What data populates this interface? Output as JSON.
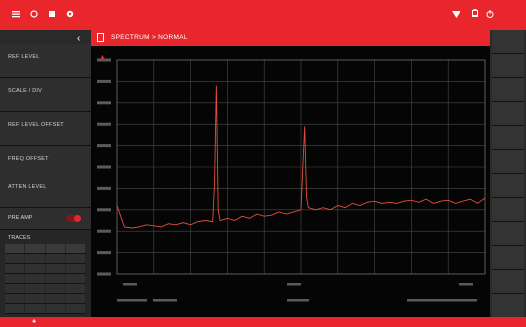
{
  "colors": {
    "accent": "#e8262b",
    "panel": "#2a2a2a",
    "trace": "#e0503c",
    "grid": "#4a4a4a",
    "axis_text": "#a0a0a0"
  },
  "topbar": {
    "left_icons": [
      "menu-icon",
      "record-icon",
      "stop-icon",
      "settings-icon"
    ],
    "right_icons": [
      "wifi-icon",
      "battery-icon",
      "power-icon"
    ],
    "clock": {
      "time": "",
      "date": ""
    }
  },
  "titlebar": {
    "breadcrumb": "SPECTRUM > NORMAL"
  },
  "sidebar": {
    "items": [
      {
        "label": "REF LEVEL",
        "value": ""
      },
      {
        "label": "SCALE / DIV",
        "value": ""
      },
      {
        "label": "REF LEVEL OFFSET",
        "value": ""
      },
      {
        "label": "FREQ OFFSET",
        "value": ""
      },
      {
        "label": "ATTEN LEVEL",
        "value": ""
      }
    ],
    "preamp_label": "PRE AMP",
    "preamp_on": true,
    "traces_title": "TRACES",
    "trace_table": {
      "headers": [
        "",
        "",
        "",
        ""
      ],
      "rows": [
        [
          "",
          "",
          "",
          ""
        ],
        [
          "",
          "",
          "",
          ""
        ],
        [
          "",
          "",
          "",
          ""
        ],
        [
          "",
          "",
          "",
          ""
        ],
        [
          "",
          "",
          "",
          ""
        ],
        [
          "",
          "",
          "",
          ""
        ]
      ]
    }
  },
  "rightbar": {
    "buttons": [
      "",
      "",
      "",
      "",
      "",
      "",
      "",
      "",
      "",
      "",
      "",
      ""
    ]
  },
  "plot": {
    "marker_label": "",
    "status": {
      "left1": "",
      "left2": "",
      "mid1": "",
      "mid2": "",
      "right1": "",
      "right2": ""
    },
    "x_start_label": "",
    "x_center_label": "",
    "x_stop_label": ""
  },
  "chart_data": {
    "type": "line",
    "title": "",
    "xlabel": "",
    "ylabel": "",
    "grid": true,
    "ylim": [
      0,
      10
    ],
    "xlim": [
      0,
      100
    ],
    "series": [
      {
        "x": [
          0,
          2,
          4,
          6,
          8,
          10,
          12,
          14,
          16,
          18,
          20,
          22,
          24,
          26,
          26.5,
          27,
          27.5,
          28,
          30,
          32,
          34,
          36,
          38,
          40,
          42,
          44,
          46,
          48,
          50,
          50.5,
          51,
          51.5,
          52,
          54,
          56,
          58,
          60,
          62,
          64,
          66,
          68,
          70,
          72,
          74,
          76,
          78,
          80,
          82,
          84,
          86,
          88,
          90,
          92,
          94,
          96,
          98,
          100
        ],
        "y": [
          3.2,
          2.2,
          2.15,
          2.2,
          2.3,
          2.25,
          2.2,
          2.35,
          2.3,
          2.4,
          2.3,
          2.45,
          2.5,
          2.45,
          4.2,
          8.8,
          3.0,
          2.5,
          2.6,
          2.5,
          2.7,
          2.6,
          2.8,
          2.7,
          2.75,
          2.9,
          2.8,
          2.9,
          3.0,
          5.0,
          6.9,
          3.6,
          3.1,
          3.0,
          3.1,
          3.0,
          3.2,
          3.1,
          3.3,
          3.2,
          3.35,
          3.4,
          3.3,
          3.35,
          3.3,
          3.4,
          3.45,
          3.35,
          3.5,
          3.3,
          3.4,
          3.45,
          3.3,
          3.4,
          3.5,
          3.3,
          3.55
        ]
      }
    ]
  }
}
